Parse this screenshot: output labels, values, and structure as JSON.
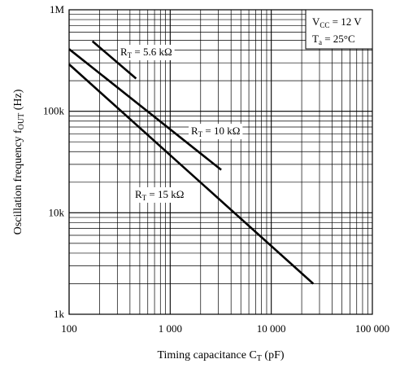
{
  "chart_data": {
    "type": "line",
    "scale": {
      "x": "log",
      "y": "log"
    },
    "xlim": [
      100,
      100000
    ],
    "ylim": [
      1000,
      1000000
    ],
    "grid": true,
    "x_ticks": [
      {
        "value": 100,
        "label": "100"
      },
      {
        "value": 1000,
        "label": "1 000"
      },
      {
        "value": 10000,
        "label": "10 000"
      },
      {
        "value": 100000,
        "label": "100 000"
      }
    ],
    "y_ticks": [
      {
        "value": 1000,
        "label": "1k"
      },
      {
        "value": 10000,
        "label": "10k"
      },
      {
        "value": 100000,
        "label": "100k"
      },
      {
        "value": 1000000,
        "label": "1M"
      }
    ],
    "xlabel": {
      "main": "Timing capacitance  C",
      "sub": "T",
      "unit": "  (pF)"
    },
    "ylabel": {
      "main": "Oscillation frequency  f",
      "sub": "OUT",
      "unit": "  (Hz)"
    },
    "conditions": [
      {
        "main": "V",
        "sub": "CC",
        "rest": " = 12 V"
      },
      {
        "main": "T",
        "sub": "a",
        "rest": " = 25°C"
      }
    ],
    "series": [
      {
        "label": {
          "main": "R",
          "sub": "T",
          "rest": " = 5.6 kΩ"
        },
        "points": [
          [
            170,
            490000
          ],
          [
            460,
            210000
          ]
        ]
      },
      {
        "label": {
          "main": "R",
          "sub": "T",
          "rest": " = 10 kΩ"
        },
        "points": [
          [
            100,
            410000
          ],
          [
            3200,
            26500
          ]
        ]
      },
      {
        "label": {
          "main": "R",
          "sub": "T",
          "rest": " = 15 kΩ"
        },
        "points": [
          [
            100,
            290000
          ],
          [
            26000,
            2000
          ]
        ]
      }
    ]
  }
}
